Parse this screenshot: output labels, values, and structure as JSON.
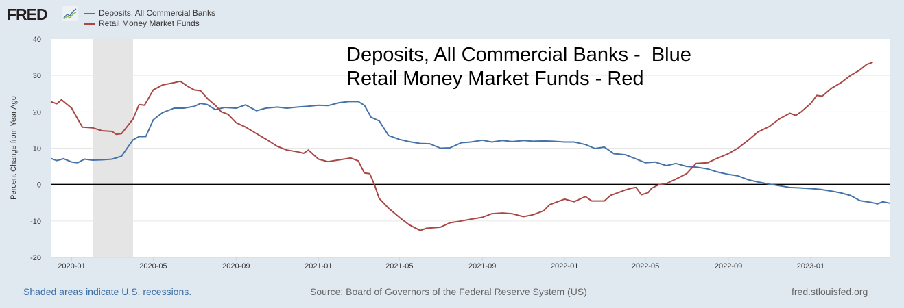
{
  "brand": {
    "logo_text": "FRED"
  },
  "footer": {
    "recession_note": "Shaded areas indicate U.S. recessions.",
    "source": "Source: Board of Governors of the Federal Reserve System (US)",
    "site": "fred.stlouisfed.org"
  },
  "chart_data": {
    "type": "line",
    "ylabel": "Percent Change from Year Ago",
    "ylim": [
      -20,
      40
    ],
    "yticks": [
      -20,
      -10,
      0,
      10,
      20,
      30,
      40
    ],
    "xlim": [
      "2019-12-01",
      "2023-04-28"
    ],
    "xticks": [
      "2020-01",
      "2020-05",
      "2020-09",
      "2021-01",
      "2021-05",
      "2021-09",
      "2022-01",
      "2022-05",
      "2022-09",
      "2023-01"
    ],
    "grid": true,
    "legend_position": "top-left",
    "recessions": [
      {
        "start": "2020-02-01",
        "end": "2020-04-01"
      }
    ],
    "annotations": [
      "Deposits, All Commercial Banks -  Blue",
      "Retail Money Market Funds - Red"
    ],
    "series": [
      {
        "name": "Deposits, All Commercial Banks",
        "color": "#4572a7",
        "points": [
          [
            "2019-12-01",
            7.2
          ],
          [
            "2019-12-10",
            6.6
          ],
          [
            "2019-12-20",
            7.1
          ],
          [
            "2020-01-01",
            6.2
          ],
          [
            "2020-01-10",
            6.0
          ],
          [
            "2020-01-20",
            7.0
          ],
          [
            "2020-02-01",
            6.7
          ],
          [
            "2020-02-15",
            6.8
          ],
          [
            "2020-03-01",
            7.0
          ],
          [
            "2020-03-15",
            7.8
          ],
          [
            "2020-04-01",
            12.3
          ],
          [
            "2020-04-10",
            13.2
          ],
          [
            "2020-04-20",
            13.2
          ],
          [
            "2020-05-01",
            17.8
          ],
          [
            "2020-05-15",
            19.8
          ],
          [
            "2020-06-01",
            21.0
          ],
          [
            "2020-06-15",
            21.0
          ],
          [
            "2020-07-01",
            21.5
          ],
          [
            "2020-07-10",
            22.3
          ],
          [
            "2020-07-20",
            22.0
          ],
          [
            "2020-08-01",
            20.6
          ],
          [
            "2020-08-15",
            21.2
          ],
          [
            "2020-09-01",
            21.0
          ],
          [
            "2020-09-15",
            21.9
          ],
          [
            "2020-10-01",
            20.3
          ],
          [
            "2020-10-15",
            21.0
          ],
          [
            "2020-11-01",
            21.3
          ],
          [
            "2020-11-15",
            21.0
          ],
          [
            "2020-12-01",
            21.3
          ],
          [
            "2020-12-15",
            21.5
          ],
          [
            "2021-01-01",
            21.8
          ],
          [
            "2021-01-15",
            21.7
          ],
          [
            "2021-02-01",
            22.5
          ],
          [
            "2021-02-15",
            22.8
          ],
          [
            "2021-03-01",
            22.8
          ],
          [
            "2021-03-10",
            21.8
          ],
          [
            "2021-03-20",
            18.5
          ],
          [
            "2021-04-01",
            17.5
          ],
          [
            "2021-04-15",
            13.5
          ],
          [
            "2021-05-01",
            12.4
          ],
          [
            "2021-05-15",
            11.8
          ],
          [
            "2021-06-01",
            11.3
          ],
          [
            "2021-06-15",
            11.2
          ],
          [
            "2021-07-01",
            10.0
          ],
          [
            "2021-07-15",
            10.1
          ],
          [
            "2021-08-01",
            11.5
          ],
          [
            "2021-08-15",
            11.7
          ],
          [
            "2021-09-01",
            12.2
          ],
          [
            "2021-09-15",
            11.7
          ],
          [
            "2021-10-01",
            12.1
          ],
          [
            "2021-10-15",
            11.8
          ],
          [
            "2021-11-01",
            12.1
          ],
          [
            "2021-11-15",
            11.9
          ],
          [
            "2021-12-01",
            12.0
          ],
          [
            "2021-12-15",
            11.9
          ],
          [
            "2022-01-01",
            11.7
          ],
          [
            "2022-01-15",
            11.7
          ],
          [
            "2022-02-01",
            11.0
          ],
          [
            "2022-02-15",
            9.9
          ],
          [
            "2022-03-01",
            10.3
          ],
          [
            "2022-03-15",
            8.5
          ],
          [
            "2022-04-01",
            8.2
          ],
          [
            "2022-04-15",
            7.2
          ],
          [
            "2022-05-01",
            6.0
          ],
          [
            "2022-05-15",
            6.2
          ],
          [
            "2022-06-01",
            5.2
          ],
          [
            "2022-06-15",
            5.8
          ],
          [
            "2022-07-01",
            5.0
          ],
          [
            "2022-07-15",
            4.8
          ],
          [
            "2022-08-01",
            4.3
          ],
          [
            "2022-08-15",
            3.5
          ],
          [
            "2022-09-01",
            2.8
          ],
          [
            "2022-09-15",
            2.4
          ],
          [
            "2022-10-01",
            1.3
          ],
          [
            "2022-10-15",
            0.7
          ],
          [
            "2022-11-01",
            0.1
          ],
          [
            "2022-11-15",
            -0.3
          ],
          [
            "2022-12-01",
            -0.8
          ],
          [
            "2022-12-15",
            -0.9
          ],
          [
            "2023-01-01",
            -1.1
          ],
          [
            "2023-01-15",
            -1.3
          ],
          [
            "2023-02-01",
            -1.8
          ],
          [
            "2023-02-15",
            -2.3
          ],
          [
            "2023-03-01",
            -3.0
          ],
          [
            "2023-03-15",
            -4.4
          ],
          [
            "2023-04-01",
            -4.9
          ],
          [
            "2023-04-10",
            -5.3
          ],
          [
            "2023-04-18",
            -4.7
          ],
          [
            "2023-04-28",
            -5.1
          ]
        ]
      },
      {
        "name": "Retail Money Market Funds",
        "color": "#aa4643",
        "points": [
          [
            "2019-12-01",
            22.8
          ],
          [
            "2019-12-10",
            22.2
          ],
          [
            "2019-12-17",
            23.3
          ],
          [
            "2020-01-01",
            21.0
          ],
          [
            "2020-01-10",
            18.0
          ],
          [
            "2020-01-17",
            15.8
          ],
          [
            "2020-02-01",
            15.6
          ],
          [
            "2020-02-15",
            14.8
          ],
          [
            "2020-03-01",
            14.6
          ],
          [
            "2020-03-07",
            13.8
          ],
          [
            "2020-03-15",
            14.0
          ],
          [
            "2020-03-21",
            15.4
          ],
          [
            "2020-04-01",
            18.0
          ],
          [
            "2020-04-10",
            22.0
          ],
          [
            "2020-04-18",
            21.8
          ],
          [
            "2020-05-01",
            26.0
          ],
          [
            "2020-05-15",
            27.4
          ],
          [
            "2020-06-01",
            28.0
          ],
          [
            "2020-06-10",
            28.4
          ],
          [
            "2020-06-21",
            27.0
          ],
          [
            "2020-07-01",
            26.0
          ],
          [
            "2020-07-10",
            25.8
          ],
          [
            "2020-07-21",
            23.5
          ],
          [
            "2020-08-01",
            21.8
          ],
          [
            "2020-08-10",
            20.0
          ],
          [
            "2020-08-20",
            19.3
          ],
          [
            "2020-09-01",
            17.0
          ],
          [
            "2020-09-15",
            15.8
          ],
          [
            "2020-10-01",
            14.0
          ],
          [
            "2020-10-15",
            12.5
          ],
          [
            "2020-11-01",
            10.5
          ],
          [
            "2020-11-15",
            9.5
          ],
          [
            "2020-12-01",
            9.0
          ],
          [
            "2020-12-10",
            8.6
          ],
          [
            "2020-12-17",
            9.5
          ],
          [
            "2021-01-01",
            7.0
          ],
          [
            "2021-01-15",
            6.3
          ],
          [
            "2021-02-01",
            6.8
          ],
          [
            "2021-02-18",
            7.3
          ],
          [
            "2021-03-01",
            6.5
          ],
          [
            "2021-03-10",
            3.2
          ],
          [
            "2021-03-18",
            3.0
          ],
          [
            "2021-03-25",
            0.0
          ],
          [
            "2021-04-01",
            -3.8
          ],
          [
            "2021-04-15",
            -6.5
          ],
          [
            "2021-05-01",
            -9.0
          ],
          [
            "2021-05-15",
            -11.0
          ],
          [
            "2021-06-01",
            -12.6
          ],
          [
            "2021-06-10",
            -12.0
          ],
          [
            "2021-07-01",
            -11.7
          ],
          [
            "2021-07-15",
            -10.5
          ],
          [
            "2021-08-01",
            -10.0
          ],
          [
            "2021-08-15",
            -9.5
          ],
          [
            "2021-09-01",
            -9.0
          ],
          [
            "2021-09-15",
            -8.0
          ],
          [
            "2021-10-01",
            -7.8
          ],
          [
            "2021-10-15",
            -8.0
          ],
          [
            "2021-11-01",
            -8.8
          ],
          [
            "2021-11-15",
            -8.3
          ],
          [
            "2021-12-01",
            -7.2
          ],
          [
            "2021-12-10",
            -5.5
          ],
          [
            "2022-01-01",
            -4.0
          ],
          [
            "2022-01-15",
            -4.7
          ],
          [
            "2022-02-01",
            -3.3
          ],
          [
            "2022-02-10",
            -4.5
          ],
          [
            "2022-03-01",
            -4.5
          ],
          [
            "2022-03-10",
            -3.0
          ],
          [
            "2022-04-01",
            -1.5
          ],
          [
            "2022-04-10",
            -1.0
          ],
          [
            "2022-04-17",
            -0.8
          ],
          [
            "2022-04-25",
            -2.8
          ],
          [
            "2022-05-05",
            -2.2
          ],
          [
            "2022-05-10",
            -1.0
          ],
          [
            "2022-05-21",
            0.0
          ],
          [
            "2022-06-01",
            0.3
          ],
          [
            "2022-06-15",
            1.5
          ],
          [
            "2022-07-01",
            3.0
          ],
          [
            "2022-07-15",
            5.8
          ],
          [
            "2022-08-01",
            6.0
          ],
          [
            "2022-08-15",
            7.2
          ],
          [
            "2022-09-01",
            8.5
          ],
          [
            "2022-09-15",
            10.0
          ],
          [
            "2022-10-01",
            12.3
          ],
          [
            "2022-10-15",
            14.5
          ],
          [
            "2022-11-01",
            16.0
          ],
          [
            "2022-11-15",
            18.0
          ],
          [
            "2022-12-01",
            19.6
          ],
          [
            "2022-12-10",
            19.0
          ],
          [
            "2022-12-18",
            20.0
          ],
          [
            "2023-01-01",
            22.3
          ],
          [
            "2023-01-10",
            24.5
          ],
          [
            "2023-01-18",
            24.3
          ],
          [
            "2023-02-01",
            26.5
          ],
          [
            "2023-02-15",
            28.0
          ],
          [
            "2023-03-01",
            30.0
          ],
          [
            "2023-03-15",
            31.5
          ],
          [
            "2023-03-25",
            33.0
          ],
          [
            "2023-04-03",
            33.6
          ]
        ]
      }
    ]
  }
}
